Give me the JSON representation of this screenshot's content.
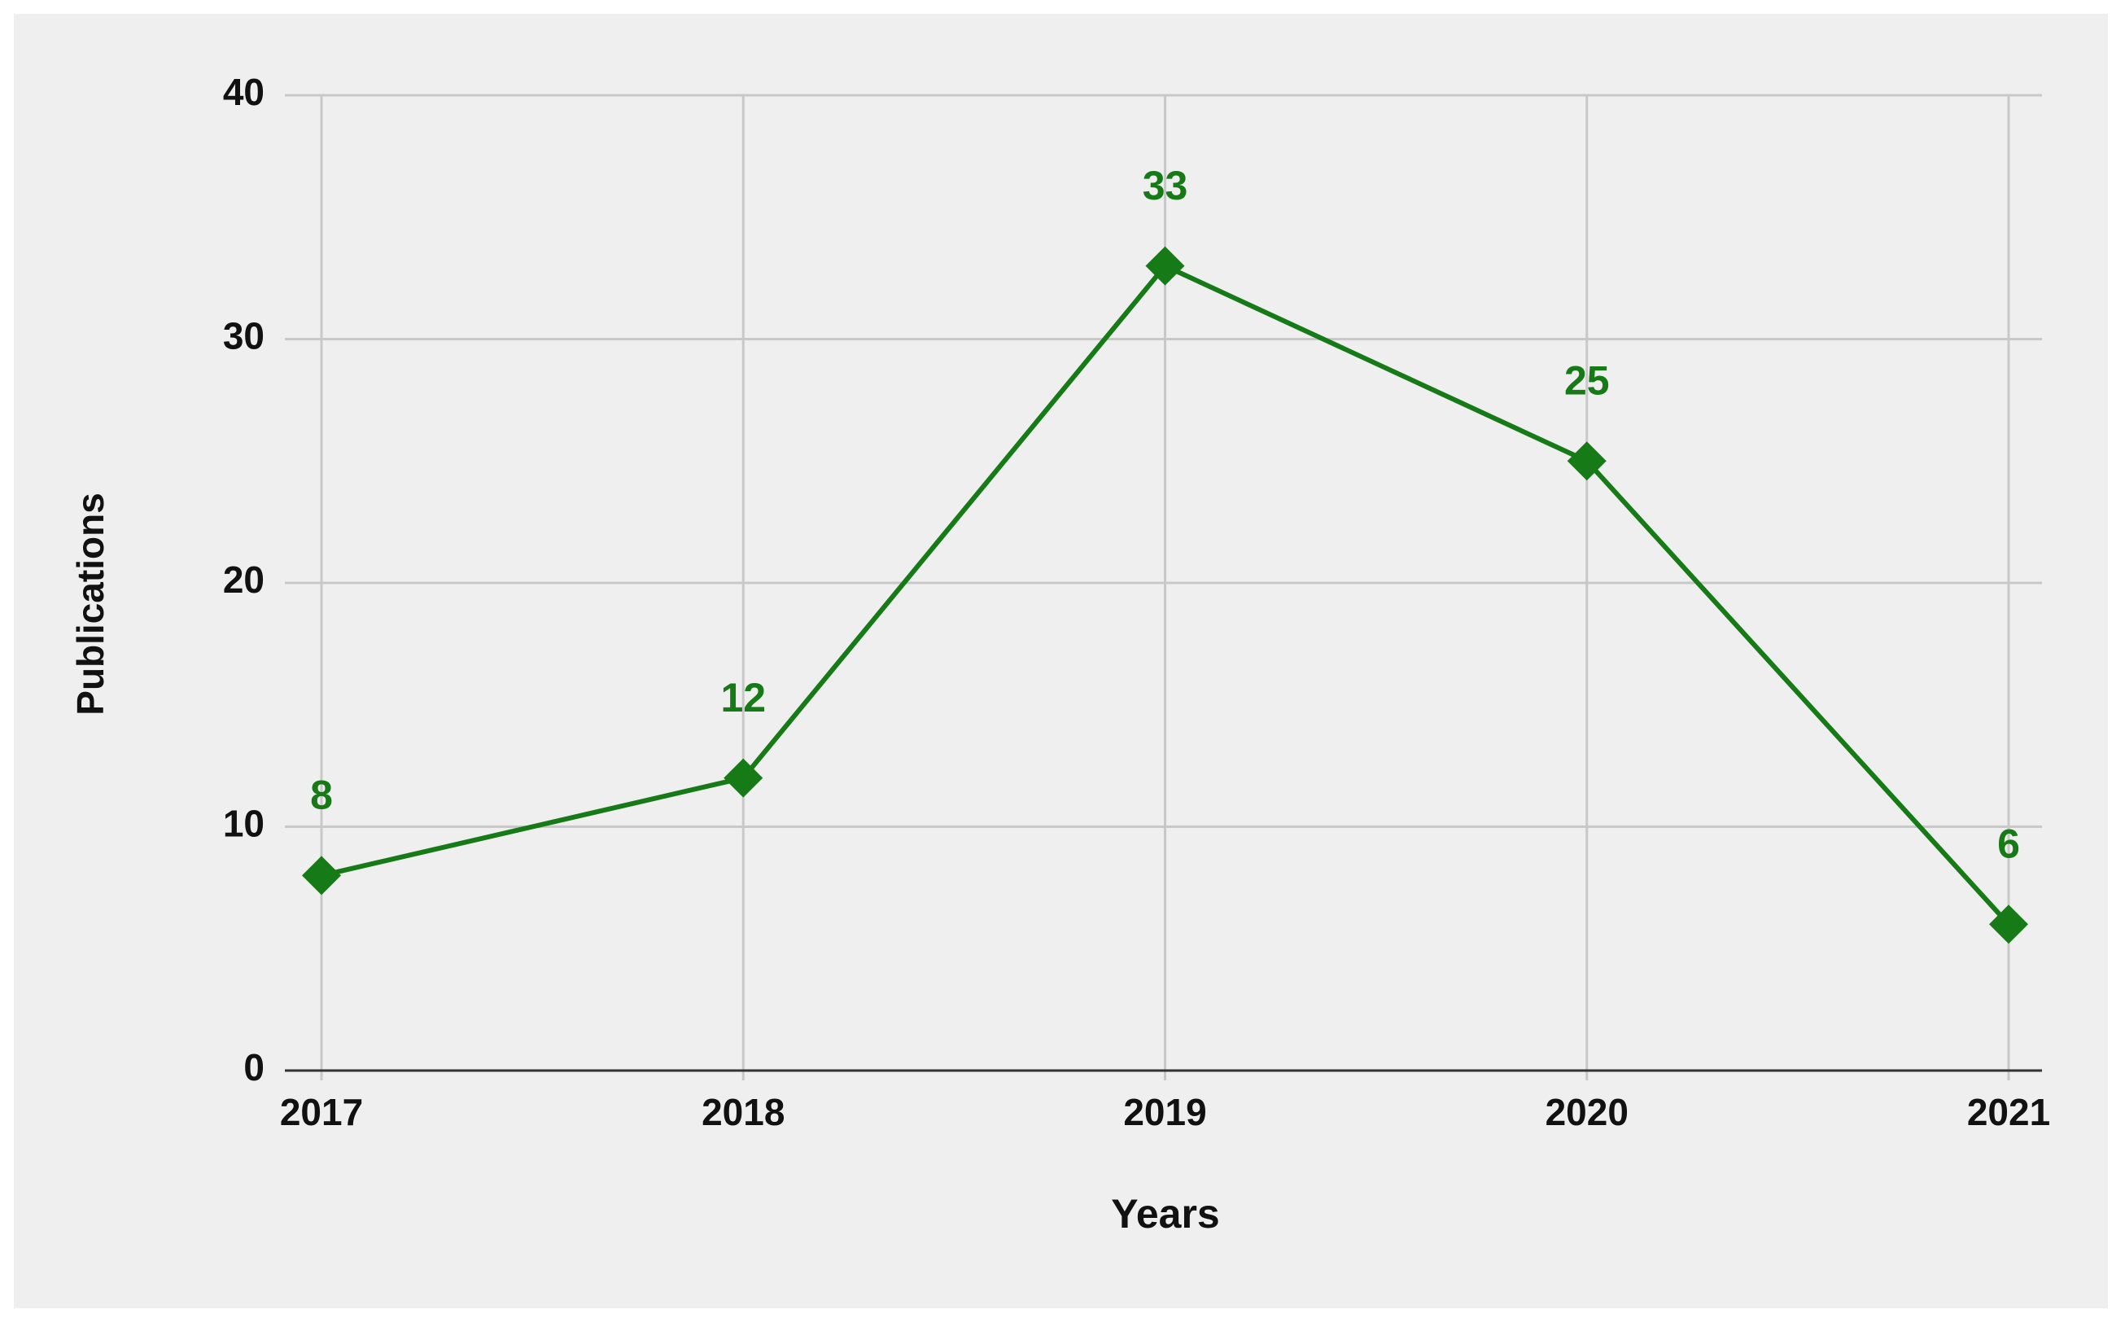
{
  "chart_data": {
    "type": "line",
    "x_label": "Years",
    "y_label": "Publications",
    "categories": [
      "2017",
      "2018",
      "2019",
      "2020",
      "2021"
    ],
    "values": [
      8,
      12,
      33,
      25,
      6
    ],
    "color": "#167a16",
    "ylim": [
      0,
      40
    ],
    "yticks": [
      0,
      10,
      20,
      30,
      40
    ],
    "grid": true
  }
}
